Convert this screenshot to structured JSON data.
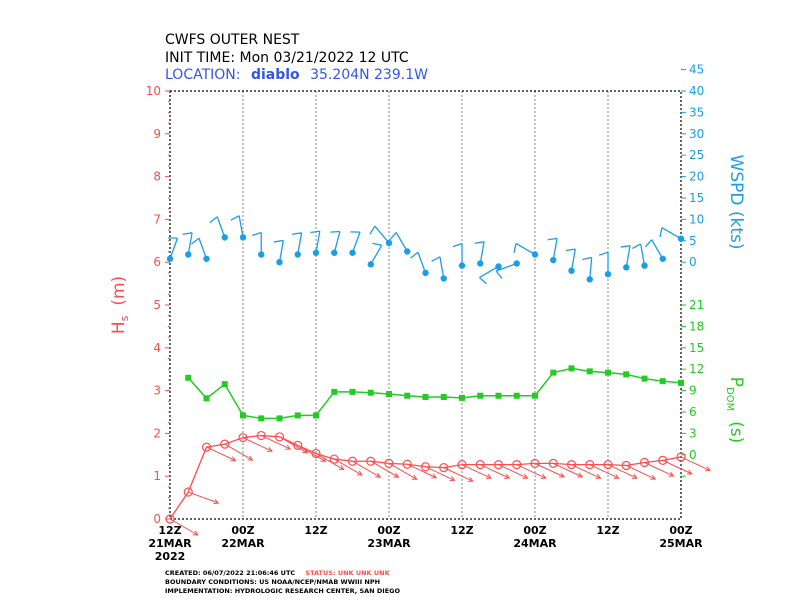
{
  "header": {
    "title": "CWFS OUTER NEST",
    "init_time": "INIT TIME: Mon 03/21/2022 12 UTC",
    "location_label": "LOCATION:",
    "location_name": "diablo",
    "location_coords": "35.204N  239.1W"
  },
  "footer": {
    "created": "CREATED: 06/07/2022 21:06:46 UTC",
    "status": "STATUS: UNK UNK UNK",
    "boundary": "BOUNDARY CONDITIONS: US NOAA/NCEP/NMAB WWIII NPH",
    "implementation": "IMPLEMENTATION: HYDROLOGIC RESEARCH CENTER, SAN DIEGO"
  },
  "colors": {
    "hs": "#ff4d4d",
    "wspd": "#1a9ee6",
    "pdom": "#22cc22",
    "location": "#3355ee",
    "grid": "#888888"
  },
  "chart_data": {
    "type": "line",
    "x_label": "",
    "x_hours": [
      0,
      3,
      6,
      9,
      12,
      15,
      18,
      21,
      24,
      27,
      30,
      33,
      36,
      39,
      42,
      45,
      48,
      51,
      54,
      57,
      60,
      63,
      66,
      69,
      72,
      75,
      78,
      81,
      84
    ],
    "xlim": [
      0,
      84
    ],
    "x_ticks": [
      {
        "h": 0,
        "top": "12Z",
        "mid": "21MAR",
        "bot": "2022"
      },
      {
        "h": 12,
        "top": "00Z",
        "mid": "22MAR",
        "bot": ""
      },
      {
        "h": 24,
        "top": "12Z",
        "mid": "",
        "bot": ""
      },
      {
        "h": 36,
        "top": "00Z",
        "mid": "23MAR",
        "bot": ""
      },
      {
        "h": 48,
        "top": "12Z",
        "mid": "",
        "bot": ""
      },
      {
        "h": 60,
        "top": "00Z",
        "mid": "24MAR",
        "bot": ""
      },
      {
        "h": 72,
        "top": "12Z",
        "mid": "",
        "bot": ""
      },
      {
        "h": 84,
        "top": "00Z",
        "mid": "25MAR",
        "bot": ""
      }
    ],
    "left_axis": {
      "label": "Hs (m)",
      "label_main": "H",
      "label_sub": "s",
      "label_unit": "(m)",
      "ylim": [
        0,
        10
      ],
      "ticks": [
        "0",
        "1",
        "2",
        "3",
        "4",
        "5",
        "6",
        "7",
        "8",
        "9",
        "10"
      ]
    },
    "right_axis_wspd": {
      "label": "WSPD (kts)",
      "ticks": [
        {
          "v": 6.0,
          "t": "0"
        },
        {
          "v": 6.5,
          "t": "5"
        },
        {
          "v": 7.0,
          "t": "10"
        },
        {
          "v": 7.5,
          "t": "15"
        },
        {
          "v": 8.0,
          "t": "20"
        },
        {
          "v": 8.5,
          "t": "25"
        },
        {
          "v": 9.0,
          "t": "30"
        },
        {
          "v": 9.5,
          "t": "35"
        },
        {
          "v": 10.0,
          "t": "40"
        },
        {
          "v": 10.5,
          "t": "45"
        }
      ]
    },
    "right_axis_pdom": {
      "label": "PDOM (s)",
      "label_main": "P",
      "label_sub": "DOM",
      "label_unit": "(s)",
      "ticks": [
        {
          "v": 1.0,
          "t": ""
        },
        {
          "v": 1.5,
          "t": "0"
        },
        {
          "v": 2.0,
          "t": "3"
        },
        {
          "v": 2.5,
          "t": "6"
        },
        {
          "v": 3.0,
          "t": "9"
        },
        {
          "v": 3.5,
          "t": "12"
        },
        {
          "v": 4.0,
          "t": "15"
        },
        {
          "v": 4.5,
          "t": "18"
        },
        {
          "v": 5.0,
          "t": "21"
        }
      ]
    },
    "series": [
      {
        "name": "Hs",
        "values": [
          0.0,
          0.63,
          1.68,
          1.75,
          1.9,
          1.95,
          1.92,
          1.72,
          1.53,
          1.4,
          1.35,
          1.35,
          1.3,
          1.28,
          1.22,
          1.2,
          1.27,
          1.27,
          1.27,
          1.27,
          1.3,
          1.3,
          1.27,
          1.27,
          1.27,
          1.25,
          1.32,
          1.37,
          1.45
        ],
        "wave_dir_deg": [
          300,
          290,
          295,
          300,
          295,
          295,
          300,
          300,
          300,
          300,
          300,
          300,
          300,
          295,
          295,
          295,
          295,
          295,
          295,
          295,
          295,
          295,
          295,
          295,
          295,
          295,
          295,
          295,
          295
        ]
      },
      {
        "name": "PDOM",
        "values": [
          null,
          3.3,
          2.82,
          3.15,
          2.42,
          2.35,
          2.35,
          2.42,
          2.42,
          2.97,
          2.97,
          2.95,
          2.92,
          2.88,
          2.85,
          2.85,
          2.83,
          2.88,
          2.88,
          2.88,
          2.88,
          3.42,
          3.52,
          3.45,
          3.42,
          3.38,
          3.28,
          3.22,
          3.18
        ]
      },
      {
        "name": "WSPD",
        "values": [
          6.08,
          6.18,
          6.08,
          6.58,
          6.58,
          6.18,
          6.0,
          6.18,
          6.22,
          6.22,
          6.22,
          5.95,
          6.45,
          6.25,
          5.75,
          5.62,
          5.92,
          5.97,
          5.9,
          5.97,
          6.18,
          6.05,
          5.8,
          5.6,
          5.72,
          5.88,
          5.92,
          6.08,
          6.55
        ],
        "wind_dir_deg": [
          20,
          10,
          340,
          340,
          350,
          0,
          10,
          10,
          10,
          15,
          20,
          30,
          320,
          330,
          340,
          350,
          0,
          10,
          240,
          250,
          300,
          10,
          10,
          5,
          0,
          10,
          350,
          330,
          300
        ]
      }
    ],
    "grid": true,
    "legend": "none"
  }
}
